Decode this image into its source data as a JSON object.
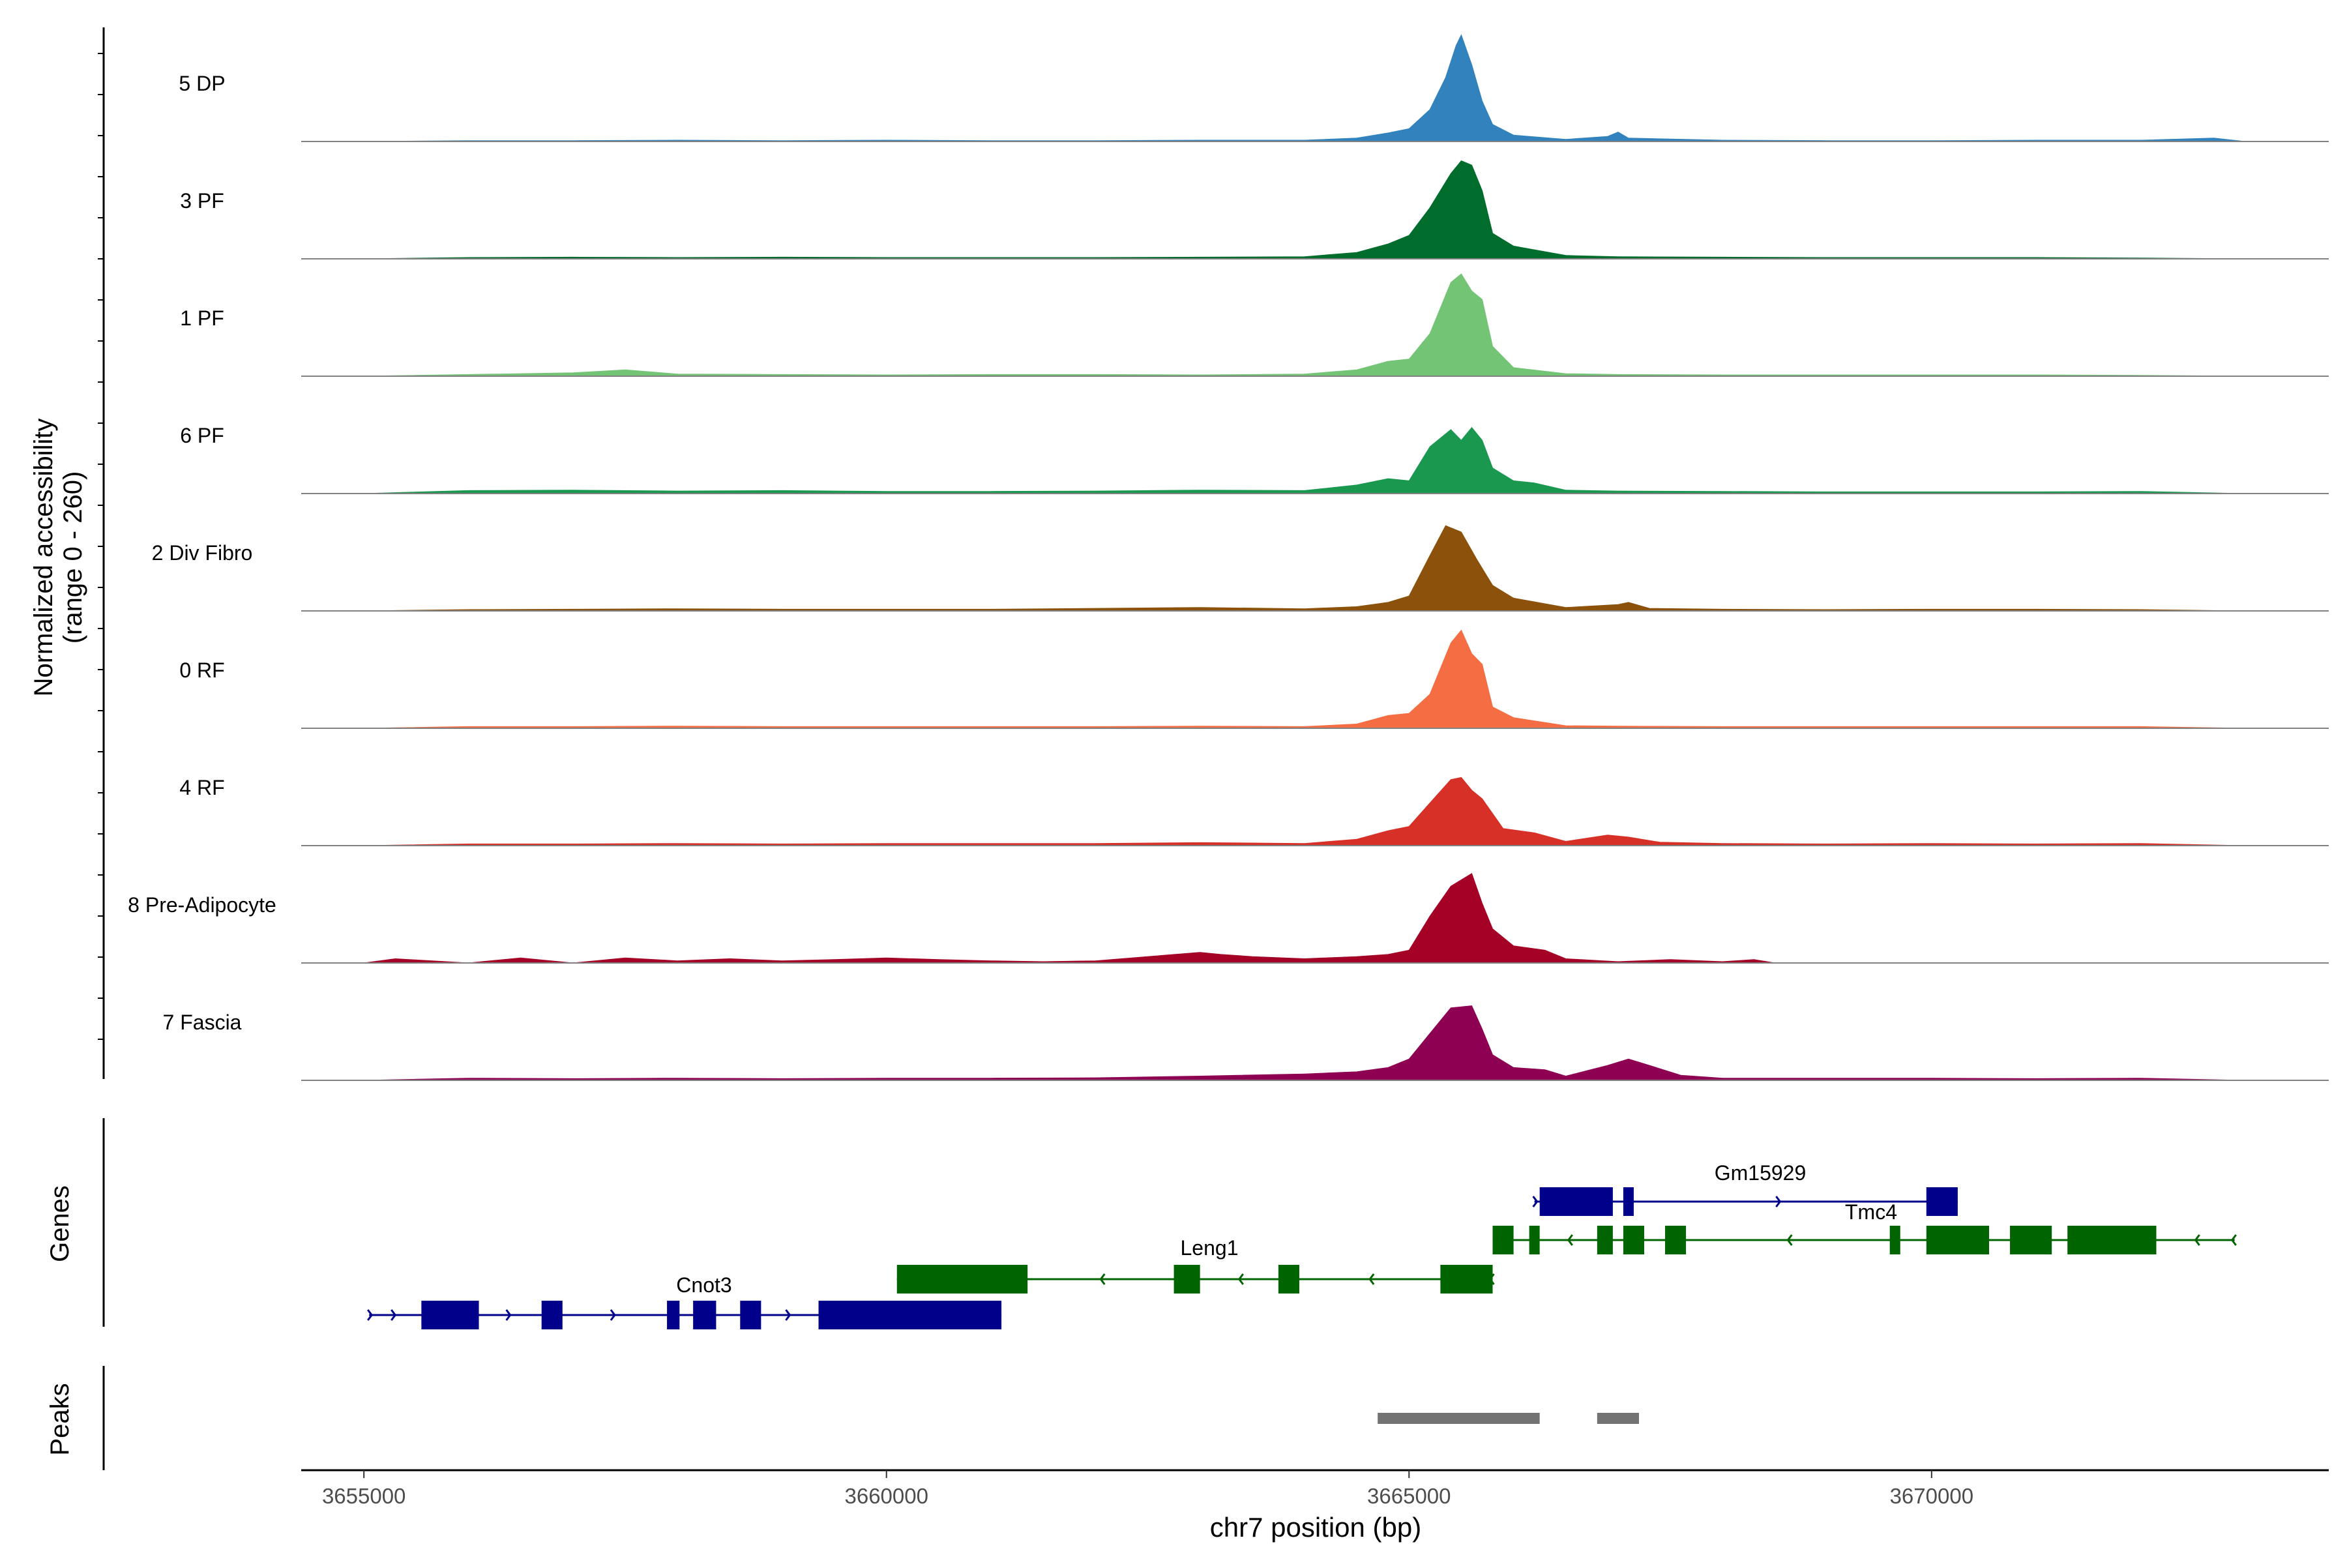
{
  "chart_data": {
    "type": "area",
    "title": "",
    "ylabel": "Normalized accessibility",
    "ylabel_range": "(range 0 - 260)",
    "ylim": [
      0,
      260
    ],
    "xlabel": "chr7 position (bp)",
    "xlim": [
      3654400,
      3673800
    ],
    "x_ticks": [
      3655000,
      3660000,
      3665000,
      3670000
    ],
    "x_tick_labels": [
      "3655000",
      "3660000",
      "3665000",
      "3670000"
    ],
    "series": [
      {
        "name": "5 DP",
        "color": "#3182bd",
        "x": [
          3655000,
          3656000,
          3657000,
          3658000,
          3659000,
          3660000,
          3661000,
          3662000,
          3663000,
          3664000,
          3664500,
          3664800,
          3665000,
          3665200,
          3665350,
          3665450,
          3665500,
          3665600,
          3665700,
          3665800,
          3666000,
          3666500,
          3666900,
          3667000,
          3667100,
          3668000,
          3669000,
          3670000,
          3671000,
          3672000,
          3672700,
          3673000
        ],
        "values": [
          0,
          2,
          2,
          3,
          2,
          3,
          2,
          2,
          3,
          3,
          8,
          20,
          30,
          75,
          150,
          225,
          250,
          180,
          95,
          40,
          15,
          5,
          12,
          22,
          8,
          3,
          2,
          2,
          3,
          3,
          8,
          0
        ]
      },
      {
        "name": "3 PF",
        "color": "#006d2c",
        "x": [
          3655000,
          3656000,
          3657000,
          3658000,
          3659000,
          3660000,
          3661000,
          3662000,
          3663000,
          3664000,
          3664500,
          3664800,
          3665000,
          3665200,
          3665400,
          3665500,
          3665600,
          3665700,
          3665800,
          3666000,
          3666500,
          3667000,
          3668000,
          3669000,
          3670000,
          3671000,
          3672000,
          3673000
        ],
        "values": [
          0,
          3,
          4,
          3,
          4,
          3,
          3,
          3,
          4,
          5,
          15,
          35,
          55,
          120,
          200,
          230,
          220,
          160,
          60,
          30,
          8,
          5,
          4,
          3,
          3,
          3,
          2,
          0
        ]
      },
      {
        "name": "1 PF",
        "color": "#74c476",
        "x": [
          3655000,
          3656000,
          3657000,
          3657500,
          3658000,
          3659000,
          3660000,
          3661000,
          3662000,
          3663000,
          3664000,
          3664500,
          3664800,
          3665000,
          3665200,
          3665400,
          3665500,
          3665600,
          3665700,
          3665800,
          3666000,
          3666500,
          3667000,
          3668000,
          3669000,
          3670000,
          3671000,
          3672000,
          3673000
        ],
        "values": [
          0,
          4,
          8,
          15,
          5,
          4,
          3,
          4,
          4,
          3,
          5,
          15,
          35,
          40,
          100,
          220,
          240,
          200,
          180,
          70,
          20,
          6,
          4,
          3,
          3,
          3,
          3,
          2,
          0
        ]
      },
      {
        "name": "6 PF",
        "color": "#1a9850",
        "x": [
          3655000,
          3656000,
          3657000,
          3658000,
          3659000,
          3660000,
          3661000,
          3662000,
          3663000,
          3664000,
          3664500,
          3664800,
          3665000,
          3665200,
          3665400,
          3665500,
          3665600,
          3665700,
          3665800,
          3666000,
          3666200,
          3666500,
          3667000,
          3668000,
          3669000,
          3670000,
          3671000,
          3672000,
          3673000
        ],
        "values": [
          0,
          7,
          8,
          6,
          7,
          5,
          5,
          6,
          8,
          7,
          20,
          35,
          30,
          110,
          150,
          125,
          155,
          125,
          60,
          30,
          25,
          8,
          6,
          5,
          4,
          4,
          4,
          5,
          0
        ]
      },
      {
        "name": "2 Div Fibro",
        "color": "#8c510a",
        "x": [
          3655000,
          3656000,
          3657000,
          3658000,
          3659000,
          3660000,
          3661000,
          3662000,
          3663000,
          3664000,
          3664500,
          3664800,
          3665000,
          3665200,
          3665350,
          3665500,
          3665650,
          3665800,
          3666000,
          3666500,
          3667000,
          3667100,
          3667300,
          3668000,
          3669000,
          3670000,
          3671000,
          3672000,
          3673000
        ],
        "values": [
          0,
          3,
          4,
          5,
          4,
          4,
          4,
          6,
          8,
          5,
          10,
          20,
          35,
          130,
          200,
          185,
          120,
          60,
          30,
          8,
          15,
          20,
          6,
          4,
          3,
          4,
          4,
          3,
          0
        ]
      },
      {
        "name": "0 RF",
        "color": "#f46d43",
        "x": [
          3655000,
          3656000,
          3657000,
          3658000,
          3659000,
          3660000,
          3661000,
          3662000,
          3663000,
          3664000,
          3664500,
          3664800,
          3665000,
          3665200,
          3665400,
          3665500,
          3665600,
          3665700,
          3665800,
          3666000,
          3666500,
          3667000,
          3668000,
          3669000,
          3670000,
          3671000,
          3672000,
          3673000
        ],
        "values": [
          0,
          4,
          4,
          5,
          4,
          4,
          4,
          4,
          5,
          4,
          10,
          30,
          35,
          80,
          200,
          230,
          175,
          150,
          50,
          25,
          6,
          5,
          4,
          4,
          4,
          4,
          4,
          0
        ]
      },
      {
        "name": "4 RF",
        "color": "#d73027",
        "x": [
          3655000,
          3656000,
          3657000,
          3658000,
          3659000,
          3660000,
          3661000,
          3662000,
          3663000,
          3664000,
          3664500,
          3664800,
          3665000,
          3665200,
          3665400,
          3665500,
          3665600,
          3665700,
          3665900,
          3666200,
          3666500,
          3666900,
          3667100,
          3667400,
          3668000,
          3669000,
          3670000,
          3671000,
          3672000,
          3673000
        ],
        "values": [
          0,
          4,
          4,
          5,
          4,
          5,
          5,
          5,
          7,
          5,
          15,
          35,
          45,
          100,
          155,
          160,
          130,
          110,
          40,
          30,
          10,
          25,
          20,
          8,
          5,
          4,
          5,
          4,
          5,
          0
        ]
      },
      {
        "name": "8 Pre-Adipocyte",
        "color": "#a50026",
        "x": [
          3655000,
          3655300,
          3656000,
          3656500,
          3657000,
          3657500,
          3658000,
          3658500,
          3659000,
          3659500,
          3660000,
          3660500,
          3661000,
          3661500,
          3662000,
          3662500,
          3663000,
          3663200,
          3663500,
          3664000,
          3664500,
          3664800,
          3665000,
          3665200,
          3665400,
          3665600,
          3665700,
          3665800,
          3666000,
          3666300,
          3666500,
          3667000,
          3667500,
          3668000,
          3668300,
          3668500
        ],
        "values": [
          0,
          10,
          0,
          12,
          0,
          12,
          5,
          10,
          5,
          8,
          12,
          8,
          5,
          3,
          5,
          15,
          25,
          20,
          15,
          10,
          15,
          20,
          30,
          110,
          180,
          210,
          140,
          80,
          40,
          30,
          10,
          3,
          8,
          3,
          8,
          0
        ]
      },
      {
        "name": "7 Fascia",
        "color": "#8e0152",
        "x": [
          3655000,
          3656000,
          3657000,
          3658000,
          3659000,
          3660000,
          3661000,
          3662000,
          3663000,
          3664000,
          3664500,
          3664800,
          3665000,
          3665200,
          3665400,
          3665600,
          3665700,
          3665800,
          3666000,
          3666300,
          3666500,
          3666900,
          3667100,
          3667300,
          3667600,
          3668000,
          3669000,
          3670000,
          3671000,
          3672000,
          3673000
        ],
        "values": [
          0,
          5,
          4,
          5,
          4,
          5,
          5,
          6,
          10,
          15,
          20,
          30,
          50,
          110,
          170,
          175,
          120,
          60,
          30,
          25,
          10,
          35,
          50,
          35,
          12,
          5,
          5,
          5,
          4,
          5,
          0
        ]
      }
    ],
    "genes_label": "Genes",
    "genes": [
      {
        "name": "Cnot3",
        "strand": "+",
        "color": "#00008b",
        "start": 3655050,
        "end": 3661100,
        "exons": [
          [
            3655550,
            3656100
          ],
          [
            3656700,
            3656900
          ],
          [
            3657900,
            3658020
          ],
          [
            3658150,
            3658370
          ],
          [
            3658600,
            3658800
          ],
          [
            3659350,
            3661100
          ]
        ]
      },
      {
        "name": "Leng1",
        "strand": "-",
        "color": "#006400",
        "start": 3660100,
        "end": 3665800,
        "exons": [
          [
            3660100,
            3661350
          ],
          [
            3662750,
            3663000
          ],
          [
            3663750,
            3663950
          ],
          [
            3665300,
            3665800
          ]
        ]
      },
      {
        "name": "Gm15929",
        "strand": "+",
        "color": "#00008b",
        "start": 3666200,
        "end": 3670250,
        "exons": [
          [
            3666250,
            3666950
          ],
          [
            3667050,
            3667150
          ],
          [
            3669950,
            3670250
          ]
        ]
      },
      {
        "name": "Tmc4",
        "strand": "-",
        "color": "#006400",
        "start": 3665800,
        "end": 3672900,
        "exons": [
          [
            3665800,
            3666000
          ],
          [
            3666150,
            3666250
          ],
          [
            3666800,
            3666950
          ],
          [
            3667050,
            3667250
          ],
          [
            3667450,
            3667650
          ],
          [
            3669600,
            3669700
          ],
          [
            3669950,
            3670550
          ],
          [
            3670750,
            3671150
          ],
          [
            3671300,
            3672150
          ]
        ]
      }
    ],
    "peaks_label": "Peaks",
    "peaks": [
      [
        3664700,
        3666250
      ],
      [
        3666800,
        3667200
      ]
    ],
    "grid": false,
    "legend": "none"
  }
}
